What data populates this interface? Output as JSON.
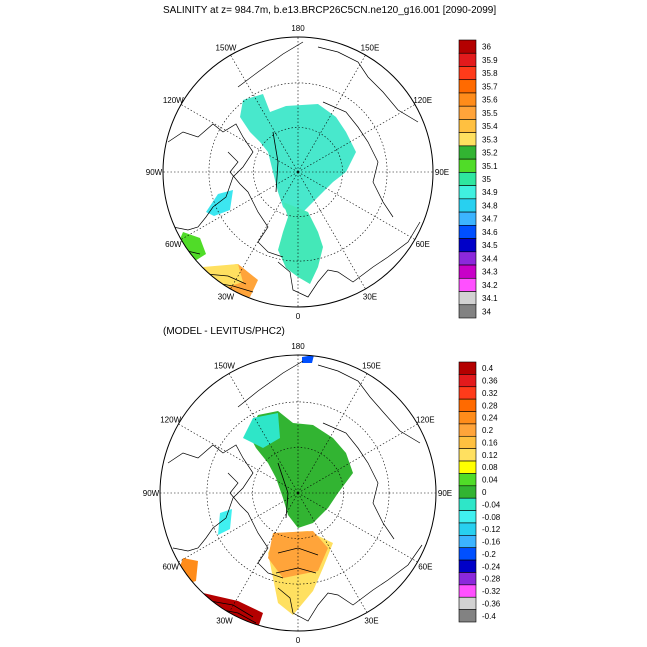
{
  "top_panel": {
    "title": "SALINITY at z= 984.7m, b.e13.BRCP26C5CN.ne120_g16.001 [2090-2099]",
    "colorbar": {
      "labels": [
        "36",
        "35.9",
        "35.8",
        "35.7",
        "35.6",
        "35.5",
        "35.4",
        "35.3",
        "35.2",
        "35.1",
        "35",
        "34.9",
        "34.8",
        "34.7",
        "34.6",
        "34.5",
        "34.4",
        "34.3",
        "34.2",
        "34.1",
        "34"
      ],
      "colors": [
        "#b40000",
        "#e31a1c",
        "#ff3b1a",
        "#ff6a00",
        "#ff8c1a",
        "#ffa43a",
        "#ffc040",
        "#ffe060",
        "#32b432",
        "#50dc28",
        "#2ee6a0",
        "#40f0e0",
        "#28d0f0",
        "#3cb4ff",
        "#0050ff",
        "#0000c8",
        "#8c28dc",
        "#c800c8",
        "#ff50ff",
        "#d2d2d2",
        "#828282"
      ]
    },
    "longitude_labels": [
      "180",
      "150E",
      "120E",
      "90E",
      "60E",
      "30E",
      "0",
      "30W",
      "60W",
      "90W",
      "120W",
      "150W"
    ]
  },
  "bottom_panel": {
    "title": "(MODEL - LEVITUS/PHC2)",
    "colorbar": {
      "labels": [
        "0.4",
        "0.36",
        "0.32",
        "0.28",
        "0.24",
        "0.2",
        "0.16",
        "0.12",
        "0.08",
        "0.04",
        "0",
        "-0.04",
        "-0.08",
        "-0.12",
        "-0.16",
        "-0.2",
        "-0.24",
        "-0.28",
        "-0.32",
        "-0.36",
        "-0.4"
      ],
      "colors": [
        "#b40000",
        "#e31a1c",
        "#ff3b1a",
        "#ff6a00",
        "#ff8c1a",
        "#ffa43a",
        "#ffc040",
        "#ffe060",
        "#ffff00",
        "#50dc28",
        "#32b432",
        "#2ee6c8",
        "#40f0f0",
        "#28d0f0",
        "#3cb4ff",
        "#0050ff",
        "#0000c8",
        "#8c28dc",
        "#ff50ff",
        "#d2d2d2",
        "#828282"
      ]
    },
    "longitude_labels": [
      "180",
      "150E",
      "120E",
      "90E",
      "60E",
      "30E",
      "0",
      "30W",
      "60W",
      "90W",
      "120W",
      "150W"
    ]
  }
}
